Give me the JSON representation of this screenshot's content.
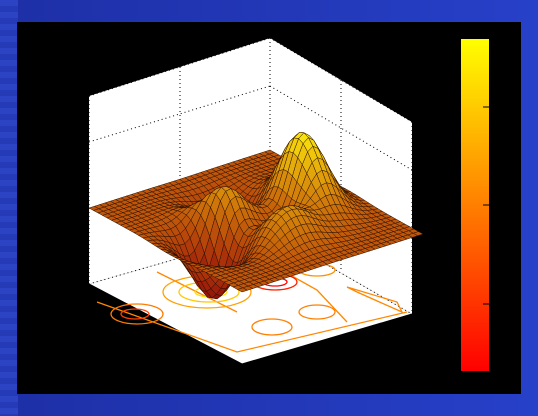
{
  "chart_data": {
    "type": "surface-with-contour",
    "description_colormap": "autumn",
    "surface": {
      "colormap": "autumn",
      "colors": [
        "#ff1a00",
        "#ff7a00",
        "#ffb000",
        "#ffe400"
      ]
    },
    "contour": {
      "colors": [
        "#ff6a00",
        "#ff9a00",
        "#ffd000",
        "#ff2a00"
      ]
    },
    "colorbar": {
      "colors_top_to_bottom": [
        "#ffff00",
        "#ff7f00",
        "#ff0000"
      ]
    },
    "axes": {
      "box": "dotted",
      "grid": true,
      "tick_labels_visible": false
    },
    "title": "",
    "xlabel": "",
    "ylabel": "",
    "zlabel": ""
  }
}
